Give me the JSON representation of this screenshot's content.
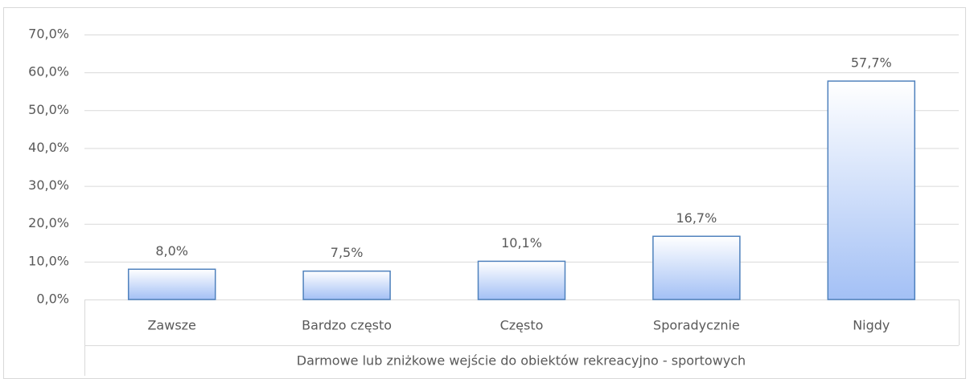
{
  "chart_data": {
    "type": "bar",
    "x_label": "Darmowe lub zniżkowe wejście do obiektów rekreacyjno - sportowych",
    "categories": [
      "Zawsze",
      "Bardzo często",
      "Często",
      "Sporadycznie",
      "Nigdy"
    ],
    "values": [
      8.0,
      7.5,
      10.1,
      16.7,
      57.7
    ],
    "value_labels": [
      "8,0%",
      "7,5%",
      "10,1%",
      "16,7%",
      "57,7%"
    ],
    "color": "#4f81bd",
    "ylim": [
      0,
      70
    ],
    "yticks": [
      {
        "value": 0,
        "label": "0,0%"
      },
      {
        "value": 10,
        "label": "10,0%"
      },
      {
        "value": 20,
        "label": "20,0%"
      },
      {
        "value": 30,
        "label": "30,0%"
      },
      {
        "value": 40,
        "label": "40,0%"
      },
      {
        "value": 50,
        "label": "50,0%"
      },
      {
        "value": 60,
        "label": "60,0%"
      },
      {
        "value": 70,
        "label": "70,0%"
      }
    ],
    "grid": true
  }
}
